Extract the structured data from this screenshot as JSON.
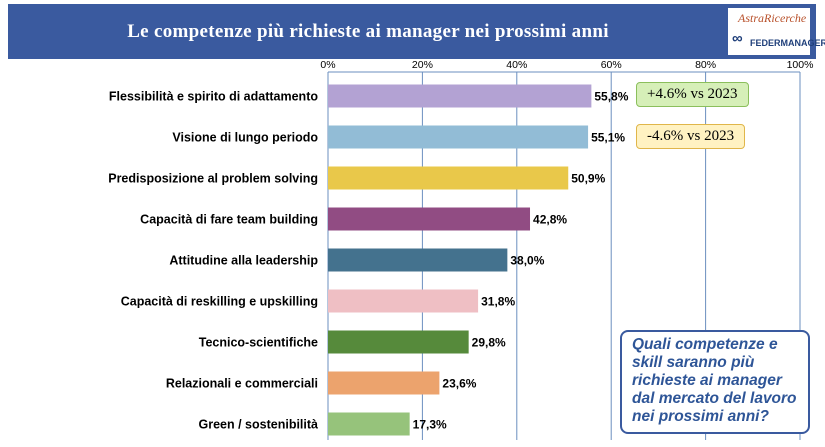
{
  "header": {
    "title": "Le competenze più richieste ai manager nei prossimi anni",
    "logo_top_text": "AstraRicerche",
    "logo_bottom_text": "FEDERMANAGER"
  },
  "notes": [
    {
      "text": "+4.6% vs 2023",
      "color": "#d6efb8"
    },
    {
      "text": "-4.6% vs 2023",
      "color": "#fff2c2"
    }
  ],
  "question_box": {
    "text": "Quali competenze e skill saranno più richieste ai manager dal mercato del lavoro nei prossimi anni?"
  },
  "chart_data": {
    "type": "bar",
    "orientation": "horizontal",
    "title": "Le competenze più richieste ai manager nei prossimi anni",
    "categories": [
      "Flessibilità e spirito di adattamento",
      "Visione di lungo periodo",
      "Predisposizione al problem solving",
      "Capacità di fare team building",
      "Attitudine alla leadership",
      "Capacità di reskilling e upskilling",
      "Tecnico-scientifiche",
      "Relazionali e commerciali",
      "Green / sostenibilità"
    ],
    "values": [
      55.8,
      55.1,
      50.9,
      42.8,
      38.0,
      31.8,
      29.8,
      23.6,
      17.3
    ],
    "value_labels": [
      "55,8%",
      "55,1%",
      "50,9%",
      "42,8%",
      "38,0%",
      "31,8%",
      "29,8%",
      "23,6%",
      "17,3%"
    ],
    "colors": [
      "#b3a2d3",
      "#92bcd6",
      "#e9c84a",
      "#914c83",
      "#44728e",
      "#efbfc4",
      "#568a3b",
      "#eca36d",
      "#96c37b"
    ],
    "xlim": [
      0,
      100
    ],
    "xticks": [
      0,
      20,
      40,
      60,
      80,
      100
    ],
    "xtick_labels": [
      "0%",
      "20%",
      "40%",
      "60%",
      "80%",
      "100%"
    ],
    "axis_position": "top",
    "grid": true,
    "grid_color": "#6b8fbf"
  }
}
